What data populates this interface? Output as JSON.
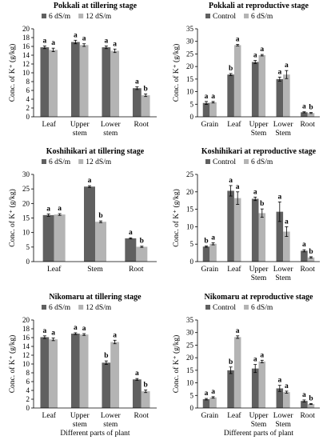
{
  "figure": {
    "xlabel_bottom": "Different parts of plant"
  },
  "colors": {
    "dark": "#606060",
    "light": "#b4b4b4"
  },
  "chart_data": [
    {
      "type": "bar",
      "title": "Pokkali at tillering stage",
      "ylabel": "Conc. of K⁺ (g/kg)",
      "xlabel": "",
      "ylim": [
        0,
        20
      ],
      "yticks": [
        0,
        2,
        4,
        6,
        8,
        10,
        12,
        14,
        16,
        18,
        20
      ],
      "categories": [
        "Leaf",
        "Upper stem",
        "Lower stem",
        "Root"
      ],
      "legend": "top-left",
      "series": [
        {
          "name": "6 dS/m",
          "values": [
            15.8,
            17.0,
            15.8,
            6.5
          ],
          "errors": [
            0.3,
            0.4,
            0.3,
            0.3
          ],
          "labels": [
            "a",
            "a",
            "a",
            "a"
          ]
        },
        {
          "name": "12 dS/m",
          "values": [
            15.2,
            16.3,
            15.0,
            4.9
          ],
          "errors": [
            0.4,
            0.3,
            0.4,
            0.3
          ],
          "labels": [
            "a",
            "a",
            "a",
            "b"
          ]
        }
      ]
    },
    {
      "type": "bar",
      "title": "Pokkali at reproductive stage",
      "ylabel": "Conc. of K⁺ (g/kg)",
      "xlabel": "",
      "ylim": [
        0,
        35
      ],
      "yticks": [
        0,
        5,
        10,
        15,
        20,
        25,
        30,
        35
      ],
      "categories": [
        "Grain",
        "Leaf",
        "Upper Stem",
        "Lower Stem",
        "Root"
      ],
      "legend": "top-left",
      "series": [
        {
          "name": "Control",
          "values": [
            5.5,
            16.8,
            21.8,
            15.0,
            1.8
          ],
          "errors": [
            0.6,
            0.4,
            0.6,
            0.8,
            0.2
          ],
          "labels": [
            "a",
            "b",
            "a",
            "a",
            "a"
          ]
        },
        {
          "name": "6 dS/m",
          "values": [
            5.8,
            28.5,
            24.5,
            16.8,
            1.5
          ],
          "errors": [
            0.3,
            0.3,
            0.3,
            1.6,
            0.2
          ],
          "labels": [
            "a",
            "a",
            "a",
            "a",
            "b"
          ]
        }
      ]
    },
    {
      "type": "bar",
      "title": "Koshihikari at tillering stage",
      "ylabel": "Conc. of K⁺ (g/kg)",
      "xlabel": "",
      "ylim": [
        0,
        30
      ],
      "yticks": [
        0,
        5,
        10,
        15,
        20,
        25,
        30
      ],
      "categories": [
        "Leaf",
        "Stem",
        "Root"
      ],
      "legend": "top-left",
      "series": [
        {
          "name": "6 dS/m",
          "values": [
            16.0,
            25.8,
            8.0
          ],
          "errors": [
            0.4,
            0.3,
            0.2
          ],
          "labels": [
            "a",
            "a",
            "a"
          ]
        },
        {
          "name": "12 dS/m",
          "values": [
            16.2,
            13.7,
            5.1
          ],
          "errors": [
            0.3,
            0.3,
            0.2
          ],
          "labels": [
            "a",
            "b",
            "b"
          ]
        }
      ]
    },
    {
      "type": "bar",
      "title": "Koshihikari at reproductive stage",
      "ylabel": "Conc. of K⁺ (g/kg)",
      "xlabel": "",
      "ylim": [
        0,
        25
      ],
      "yticks": [
        0,
        5,
        10,
        15,
        20,
        25
      ],
      "categories": [
        "Grain",
        "Leaf",
        "Upper Stem",
        "Lower Stem",
        "Root"
      ],
      "legend": "top-left",
      "series": [
        {
          "name": "Control",
          "values": [
            4.3,
            20.3,
            18.0,
            14.3,
            3.1
          ],
          "errors": [
            0.2,
            1.5,
            0.5,
            2.8,
            0.3
          ],
          "labels": [
            "b",
            "a",
            "a",
            "a",
            "a"
          ]
        },
        {
          "name": "6 dS/m",
          "values": [
            5.1,
            18.2,
            13.9,
            8.6,
            1.2
          ],
          "errors": [
            0.3,
            1.8,
            1.2,
            1.4,
            0.2
          ],
          "labels": [
            "a",
            "a",
            "b",
            "a",
            "b"
          ]
        }
      ]
    },
    {
      "type": "bar",
      "title": "Nikomaru at tillering stage",
      "ylabel": "Conc. of K⁺ (g/kg)",
      "xlabel": "Different parts of plant",
      "ylim": [
        0,
        20
      ],
      "yticks": [
        0,
        2,
        4,
        6,
        8,
        10,
        12,
        14,
        16,
        18,
        20
      ],
      "categories": [
        "Leaf",
        "Upper stem",
        "Lower stem",
        "Root"
      ],
      "legend": "top-left",
      "series": [
        {
          "name": "6 dS/m",
          "values": [
            16.1,
            16.9,
            10.3,
            6.5
          ],
          "errors": [
            0.3,
            0.2,
            0.4,
            0.2
          ],
          "labels": [
            "a",
            "a",
            "b",
            "a"
          ]
        },
        {
          "name": "12 dS/m",
          "values": [
            15.6,
            16.7,
            15.0,
            3.8
          ],
          "errors": [
            0.3,
            0.2,
            0.4,
            0.3
          ],
          "labels": [
            "a",
            "a",
            "a",
            "b"
          ]
        }
      ]
    },
    {
      "type": "bar",
      "title": "Nikomaru at reproductive stage",
      "ylabel": "Conc. of K⁺ (g/kg)",
      "xlabel": "Different parts of plant",
      "ylim": [
        0,
        35
      ],
      "yticks": [
        0,
        5,
        10,
        15,
        20,
        25,
        30,
        35
      ],
      "categories": [
        "Grain",
        "Leaf",
        "Upper Stem",
        "Lower Stem",
        "Root"
      ],
      "legend": "top-left",
      "series": [
        {
          "name": "Control",
          "values": [
            3.5,
            15.0,
            15.7,
            7.8,
            2.8
          ],
          "errors": [
            0.3,
            1.3,
            1.6,
            1.2,
            0.4
          ],
          "labels": [
            "a",
            "b",
            "a",
            "a",
            "a"
          ]
        },
        {
          "name": "6 dS/m",
          "values": [
            4.2,
            28.2,
            18.5,
            6.3,
            1.6
          ],
          "errors": [
            0.3,
            0.5,
            0.5,
            0.4,
            0.2
          ],
          "labels": [
            "a",
            "a",
            "a",
            "a",
            "b"
          ]
        }
      ]
    }
  ]
}
